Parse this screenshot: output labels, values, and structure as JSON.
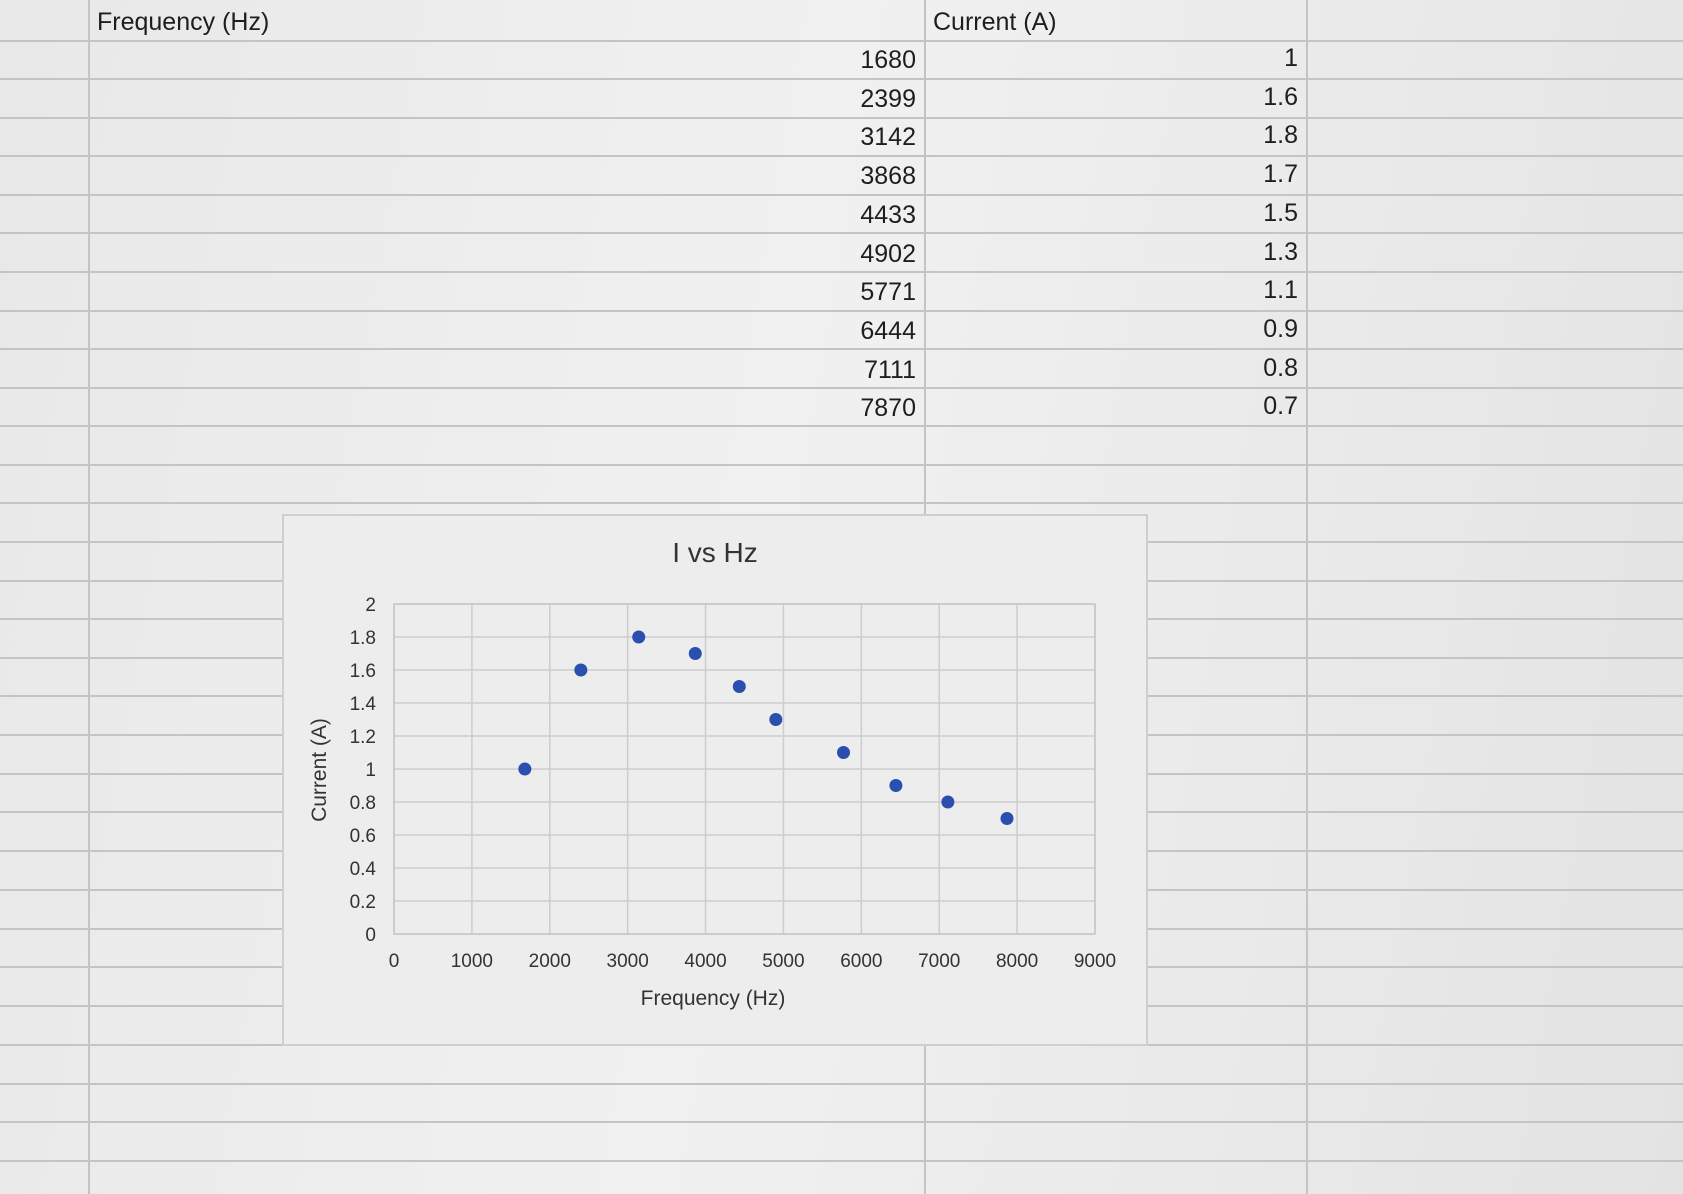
{
  "table": {
    "headers": [
      "Frequency (Hz)",
      "Current (A)"
    ],
    "frequency": [
      "1680",
      "2399",
      "3142",
      "3868",
      "4433",
      "4902",
      "5771",
      "6444",
      "7111",
      "7870"
    ],
    "current": [
      "1",
      "1.6",
      "1.8",
      "1.7",
      "1.5",
      "1.3",
      "1.1",
      "0.9",
      "0.8",
      "0.7"
    ]
  },
  "chart_data": {
    "type": "scatter",
    "title": "I vs Hz",
    "xlabel": "Frequency (Hz)",
    "ylabel": "Current (A)",
    "x": [
      1680,
      2399,
      3142,
      3868,
      4433,
      4902,
      5771,
      6444,
      7111,
      7870
    ],
    "y": [
      1,
      1.6,
      1.8,
      1.7,
      1.5,
      1.3,
      1.1,
      0.9,
      0.8,
      0.7
    ],
    "xlim": [
      0,
      9000
    ],
    "ylim": [
      0,
      2
    ],
    "x_ticks": [
      "0",
      "1000",
      "2000",
      "3000",
      "4000",
      "5000",
      "6000",
      "7000",
      "8000",
      "9000"
    ],
    "y_ticks": [
      "0",
      "0.2",
      "0.4",
      "0.6",
      "0.8",
      "1",
      "1.2",
      "1.4",
      "1.6",
      "1.8",
      "2"
    ],
    "grid": true,
    "legend": "none",
    "marker_color": "#2a4fae"
  }
}
